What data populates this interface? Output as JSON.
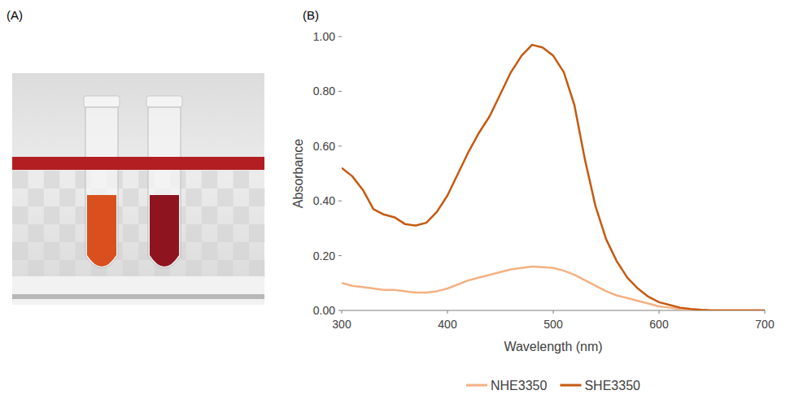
{
  "panel_labels": [
    "(A)",
    "(B)"
  ],
  "chart_data": {
    "type": "line",
    "x_label": "Wavelength (nm)",
    "y_label": "Absorbance",
    "x": [
      300,
      310,
      320,
      330,
      340,
      350,
      360,
      370,
      380,
      390,
      400,
      410,
      420,
      430,
      440,
      450,
      460,
      470,
      480,
      490,
      500,
      510,
      520,
      530,
      540,
      550,
      560,
      570,
      580,
      590,
      600,
      610,
      620,
      630,
      640,
      650,
      660,
      670,
      680,
      690,
      700
    ],
    "series": [
      {
        "name": "NHE3350",
        "color": "#f4b183",
        "values": [
          0.1,
          0.09,
          0.085,
          0.08,
          0.075,
          0.075,
          0.07,
          0.065,
          0.065,
          0.07,
          0.08,
          0.095,
          0.11,
          0.12,
          0.13,
          0.14,
          0.15,
          0.155,
          0.16,
          0.158,
          0.155,
          0.145,
          0.13,
          0.11,
          0.09,
          0.07,
          0.055,
          0.045,
          0.035,
          0.025,
          0.015,
          0.01,
          0.005,
          0.003,
          0,
          0,
          0,
          0,
          0,
          0,
          0
        ]
      },
      {
        "name": "SHE3350",
        "color": "#c55a11",
        "values": [
          0.52,
          0.49,
          0.44,
          0.37,
          0.35,
          0.34,
          0.315,
          0.31,
          0.32,
          0.36,
          0.42,
          0.5,
          0.58,
          0.65,
          0.71,
          0.79,
          0.87,
          0.93,
          0.97,
          0.96,
          0.93,
          0.87,
          0.75,
          0.55,
          0.38,
          0.26,
          0.18,
          0.12,
          0.08,
          0.05,
          0.03,
          0.02,
          0.01,
          0.005,
          0.002,
          0,
          0,
          0,
          0,
          0,
          0
        ]
      }
    ],
    "xlim": [
      300,
      700
    ],
    "xticks": [
      300,
      400,
      500,
      600,
      700
    ],
    "ylim": [
      0,
      1
    ],
    "yticks": [
      {
        "value": 0,
        "label": "0.00"
      },
      {
        "value": 0.2,
        "label": "0.20"
      },
      {
        "value": 0.4,
        "label": "0.40"
      },
      {
        "value": 0.6,
        "label": "0.60"
      },
      {
        "value": 0.8,
        "label": "0.80"
      },
      {
        "value": 1,
        "label": "1.00"
      }
    ],
    "grid": false,
    "legend": "bottom"
  }
}
